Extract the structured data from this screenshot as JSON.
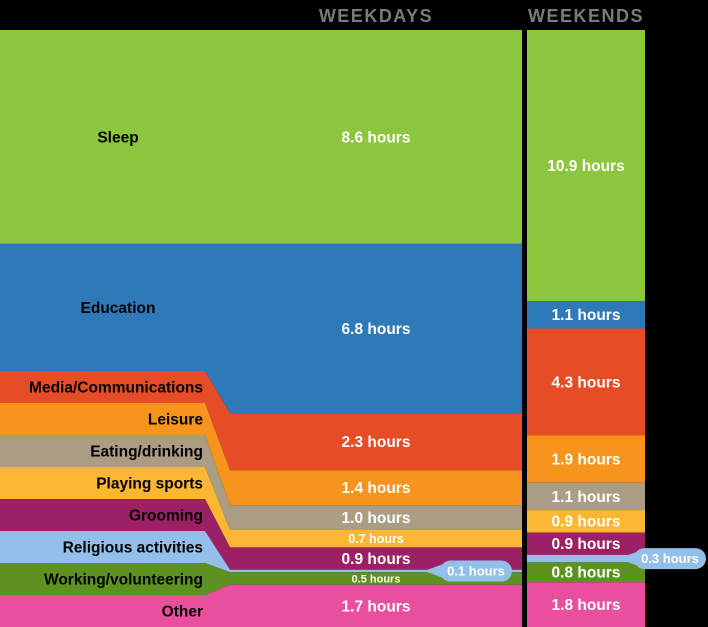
{
  "header": {
    "weekdays": "WEEKDAYS",
    "weekends": "WEEKENDS"
  },
  "chart_data": {
    "type": "bar",
    "variant": "stacked-comparison-slope",
    "columns": [
      "WEEKDAYS",
      "WEEKENDS"
    ],
    "unit": "hours",
    "total_hours": 24,
    "background_color": "#000000",
    "header_text_color": "#7a7a7a",
    "category_label_color": "#000000",
    "value_text_color": "#ffffff",
    "categories": [
      {
        "label": "Sleep",
        "color": "#8cc63e",
        "weekday_hours": 8.6,
        "weekend_hours": 10.9
      },
      {
        "label": "Education",
        "color": "#2e79b8",
        "weekday_hours": 6.8,
        "weekend_hours": 1.1
      },
      {
        "label": "Media/Communications",
        "color": "#e64c25",
        "weekday_hours": 2.3,
        "weekend_hours": 4.3
      },
      {
        "label": "Leisure",
        "color": "#f7941e",
        "weekday_hours": 1.4,
        "weekend_hours": 1.9
      },
      {
        "label": "Eating/drinking",
        "color": "#ab9d84",
        "weekday_hours": 1.0,
        "weekend_hours": 1.1
      },
      {
        "label": "Playing sports",
        "color": "#fbb731",
        "weekday_hours": 0.7,
        "weekend_hours": 0.9
      },
      {
        "label": "Grooming",
        "color": "#9c2064",
        "weekday_hours": 0.9,
        "weekend_hours": 0.9
      },
      {
        "label": "Religious activities",
        "color": "#92c0ea",
        "weekday_hours": 0.1,
        "weekend_hours": 0.3,
        "callout": true
      },
      {
        "label": "Working/volunteering",
        "color": "#5d9220",
        "weekday_hours": 0.5,
        "weekend_hours": 0.8
      },
      {
        "label": "Other",
        "color": "#ea4f9f",
        "weekday_hours": 1.7,
        "weekend_hours": 1.8
      }
    ],
    "callouts": [
      {
        "category": "Religious activities",
        "column": "WEEKDAYS",
        "label": "0.1 hours"
      },
      {
        "category": "Religious activities",
        "column": "WEEKENDS",
        "label": "0.3 hours"
      }
    ]
  }
}
